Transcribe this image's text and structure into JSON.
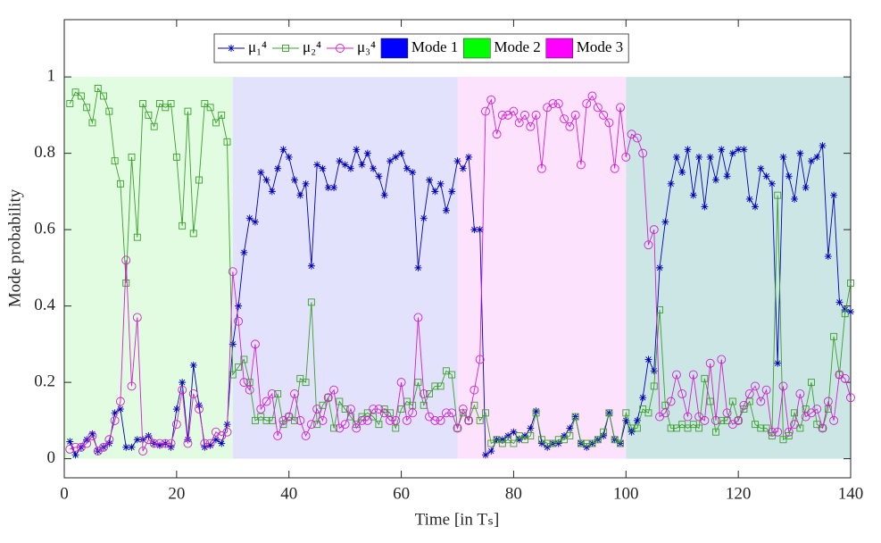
{
  "chart_data": {
    "type": "line",
    "xlabel": "Time [in Tₛ]",
    "ylabel": "Mode probability",
    "xlim": [
      0,
      140
    ],
    "xticks": [
      0,
      20,
      40,
      60,
      80,
      100,
      120,
      140
    ],
    "ylim": [
      -0.05,
      1.15
    ],
    "yticks": [
      0,
      0.2,
      0.4,
      0.6,
      0.8,
      1
    ],
    "x": [
      1,
      2,
      3,
      4,
      5,
      6,
      7,
      8,
      9,
      10,
      11,
      12,
      13,
      14,
      15,
      16,
      17,
      18,
      19,
      20,
      21,
      22,
      23,
      24,
      25,
      26,
      27,
      28,
      29,
      30,
      31,
      32,
      33,
      34,
      35,
      36,
      37,
      38,
      39,
      40,
      41,
      42,
      43,
      44,
      45,
      46,
      47,
      48,
      49,
      50,
      51,
      52,
      53,
      54,
      55,
      56,
      57,
      58,
      59,
      60,
      61,
      62,
      63,
      64,
      65,
      66,
      67,
      68,
      69,
      70,
      71,
      72,
      73,
      74,
      75,
      76,
      77,
      78,
      79,
      80,
      81,
      82,
      83,
      84,
      85,
      86,
      87,
      88,
      89,
      90,
      91,
      92,
      93,
      94,
      95,
      96,
      97,
      98,
      99,
      100,
      101,
      102,
      103,
      104,
      105,
      106,
      107,
      108,
      109,
      110,
      111,
      112,
      113,
      114,
      115,
      116,
      117,
      118,
      119,
      120,
      121,
      122,
      123,
      124,
      125,
      126,
      127,
      128,
      129,
      130,
      131,
      132,
      133,
      134,
      135,
      136,
      137,
      138,
      139,
      140
    ],
    "series": [
      {
        "name": "μ₁⁴",
        "color": "#0000b4",
        "marker": "asterisk",
        "values": [
          0.045,
          0.01,
          0.03,
          0.05,
          0.065,
          0.02,
          0.03,
          0.04,
          0.12,
          0.13,
          0.03,
          0.03,
          0.05,
          0.05,
          0.06,
          0.04,
          0.035,
          0.04,
          0.03,
          0.13,
          0.2,
          0.05,
          0.245,
          0.14,
          0.03,
          0.035,
          0.05,
          0.04,
          0.09,
          0.3,
          0.4,
          0.54,
          0.63,
          0.62,
          0.75,
          0.73,
          0.7,
          0.76,
          0.81,
          0.79,
          0.73,
          0.69,
          0.72,
          0.505,
          0.77,
          0.76,
          0.71,
          0.71,
          0.78,
          0.77,
          0.76,
          0.81,
          0.77,
          0.8,
          0.76,
          0.74,
          0.69,
          0.78,
          0.79,
          0.8,
          0.76,
          0.75,
          0.5,
          0.63,
          0.73,
          0.7,
          0.72,
          0.65,
          0.7,
          0.78,
          0.76,
          0.79,
          0.6,
          0.6,
          0.01,
          0.02,
          0.05,
          0.05,
          0.06,
          0.07,
          0.05,
          0.06,
          0.08,
          0.125,
          0.04,
          0.03,
          0.04,
          0.04,
          0.06,
          0.08,
          0.11,
          0.04,
          0.03,
          0.04,
          0.05,
          0.06,
          0.12,
          0.05,
          0.04,
          0.1,
          0.07,
          0.1,
          0.16,
          0.26,
          0.23,
          0.5,
          0.62,
          0.72,
          0.79,
          0.75,
          0.81,
          0.69,
          0.79,
          0.66,
          0.79,
          0.73,
          0.81,
          0.74,
          0.8,
          0.81,
          0.81,
          0.68,
          0.66,
          0.76,
          0.74,
          0.72,
          0.25,
          0.79,
          0.74,
          0.68,
          0.8,
          0.71,
          0.78,
          0.79,
          0.82,
          0.53,
          0.69,
          0.41,
          0.39,
          0.385
        ]
      },
      {
        "name": "μ₂⁴",
        "color": "#3aa02a",
        "marker": "square",
        "values": [
          0.93,
          0.96,
          0.95,
          0.92,
          0.88,
          0.97,
          0.95,
          0.91,
          0.78,
          0.72,
          0.46,
          0.79,
          0.58,
          0.93,
          0.9,
          0.87,
          0.93,
          0.92,
          0.93,
          0.79,
          0.61,
          0.91,
          0.59,
          0.73,
          0.93,
          0.92,
          0.88,
          0.9,
          0.83,
          0.22,
          0.24,
          0.26,
          0.2,
          0.1,
          0.11,
          0.1,
          0.1,
          0.17,
          0.09,
          0.11,
          0.1,
          0.21,
          0.2,
          0.41,
          0.09,
          0.14,
          0.16,
          0.08,
          0.15,
          0.13,
          0.11,
          0.09,
          0.11,
          0.12,
          0.11,
          0.09,
          0.13,
          0.12,
          0.08,
          0.13,
          0.15,
          0.14,
          0.2,
          0.14,
          0.17,
          0.19,
          0.19,
          0.23,
          0.22,
          0.08,
          0.12,
          0.1,
          0.14,
          0.1,
          0.12,
          0.04,
          0.05,
          0.04,
          0.05,
          0.04,
          0.06,
          0.05,
          0.06,
          0.12,
          0.05,
          0.04,
          0.04,
          0.05,
          0.05,
          0.06,
          0.11,
          0.04,
          0.04,
          0.04,
          0.05,
          0.07,
          0.12,
          0.05,
          0.04,
          0.12,
          0.08,
          0.08,
          0.13,
          0.12,
          0.19,
          0.39,
          0.14,
          0.08,
          0.08,
          0.09,
          0.08,
          0.09,
          0.08,
          0.21,
          0.15,
          0.07,
          0.1,
          0.1,
          0.15,
          0.1,
          0.13,
          0.15,
          0.09,
          0.08,
          0.08,
          0.06,
          0.69,
          0.05,
          0.06,
          0.12,
          0.08,
          0.13,
          0.2,
          0.09,
          0.08,
          0.13,
          0.32,
          0.22,
          0.38,
          0.46
        ]
      },
      {
        "name": "μ₃⁴",
        "color": "#d020d0",
        "marker": "circle",
        "values": [
          0.025,
          0.03,
          0.03,
          0.04,
          0.06,
          0.02,
          0.03,
          0.05,
          0.1,
          0.15,
          0.52,
          0.19,
          0.37,
          0.02,
          0.05,
          0.04,
          0.04,
          0.04,
          0.04,
          0.09,
          0.18,
          0.04,
          0.17,
          0.13,
          0.04,
          0.04,
          0.07,
          0.06,
          0.07,
          0.49,
          0.36,
          0.2,
          0.18,
          0.3,
          0.13,
          0.15,
          0.17,
          0.06,
          0.1,
          0.11,
          0.17,
          0.1,
          0.06,
          0.09,
          0.13,
          0.1,
          0.16,
          0.18,
          0.08,
          0.09,
          0.13,
          0.08,
          0.1,
          0.1,
          0.13,
          0.13,
          0.12,
          0.1,
          0.1,
          0.2,
          0.1,
          0.12,
          0.37,
          0.17,
          0.11,
          0.1,
          0.1,
          0.12,
          0.12,
          0.08,
          0.13,
          0.1,
          0.18,
          0.26,
          0.91,
          0.94,
          0.85,
          0.9,
          0.9,
          0.91,
          0.88,
          0.9,
          0.87,
          0.9,
          0.76,
          0.92,
          0.93,
          0.93,
          0.89,
          0.87,
          0.9,
          0.77,
          0.93,
          0.95,
          0.92,
          0.9,
          0.88,
          0.76,
          0.92,
          0.79,
          0.85,
          0.84,
          0.8,
          0.56,
          0.6,
          0.11,
          0.12,
          0.15,
          0.22,
          0.17,
          0.11,
          0.22,
          0.11,
          0.1,
          0.25,
          0.1,
          0.26,
          0.12,
          0.09,
          0.1,
          0.14,
          0.17,
          0.19,
          0.15,
          0.18,
          0.07,
          0.07,
          0.19,
          0.07,
          0.09,
          0.17,
          0.11,
          0.12,
          0.13,
          0.08,
          0.15,
          0.1,
          0.22,
          0.21,
          0.16
        ]
      }
    ],
    "modes": [
      {
        "name": "Mode 1",
        "color": "#0000ff"
      },
      {
        "name": "Mode 2",
        "color": "#00ff00"
      },
      {
        "name": "Mode 3",
        "color": "#ff00ff"
      }
    ],
    "regions": [
      {
        "x0": 0,
        "x1": 30,
        "y0": 0,
        "y1": 1,
        "color": "#e2fce2"
      },
      {
        "x0": 30,
        "x1": 70,
        "y0": 0,
        "y1": 1,
        "color": "#e2e2fc"
      },
      {
        "x0": 70,
        "x1": 100,
        "y0": 0,
        "y1": 1,
        "color": "#fde2fd"
      },
      {
        "x0": 100,
        "x1": 140,
        "y0": 0,
        "y1": 1,
        "color": "#cce6e6"
      }
    ]
  }
}
